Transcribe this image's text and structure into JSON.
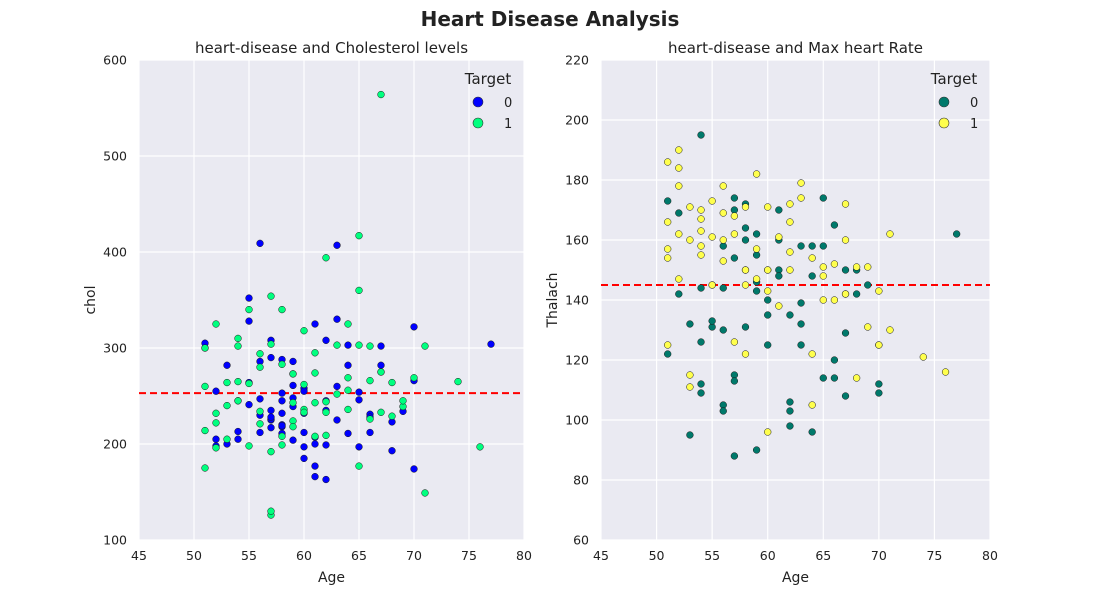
{
  "figure": {
    "title": "Heart Disease Analysis"
  },
  "chart_data": [
    {
      "type": "scatter",
      "title": "heart-disease and Cholesterol levels",
      "xlabel": "Age",
      "ylabel": "chol",
      "xlim": [
        45,
        80
      ],
      "ylim": [
        100,
        600
      ],
      "xticks": [
        "45",
        "50",
        "55",
        "60",
        "65",
        "70",
        "75",
        "80"
      ],
      "yticks": [
        "100",
        "200",
        "300",
        "400",
        "500",
        "600"
      ],
      "grid": true,
      "hline": {
        "y": 253,
        "color": "#ff0000",
        "style": "dashed"
      },
      "legend": {
        "title": "Target",
        "placement": "top-right",
        "labels": [
          "0",
          "1"
        ]
      },
      "series": [
        {
          "name": "0",
          "color": "#0000ff",
          "x": [
            51,
            51,
            52,
            52,
            52,
            53,
            53,
            54,
            54,
            55,
            55,
            55,
            56,
            56,
            56,
            57,
            57,
            57,
            57,
            58,
            58,
            58,
            58,
            58,
            59,
            59,
            59,
            59,
            60,
            60,
            60,
            60,
            61,
            61,
            61,
            62,
            62,
            62,
            62,
            63,
            63,
            63,
            64,
            64,
            65,
            65,
            65,
            66,
            66,
            67,
            67,
            67,
            68,
            68,
            69,
            70,
            70,
            70,
            77,
            55,
            56,
            57,
            58,
            59,
            60,
            61,
            62,
            57,
            58,
            59,
            60,
            61,
            63,
            64,
            66,
            56,
            58,
            54,
            57
          ],
          "y": [
            300,
            305,
            205,
            255,
            198,
            200,
            282,
            205,
            245,
            352,
            328,
            241,
            212,
            230,
            409,
            290,
            235,
            225,
            308,
            288,
            220,
            232,
            218,
            211,
            273,
            248,
            286,
            239,
            258,
            212,
            232,
            185,
            325,
            200,
            166,
            308,
            245,
            163,
            235,
            407,
            225,
            330,
            303,
            211,
            246,
            254,
            197,
            231,
            212,
            302,
            282,
            275,
            193,
            223,
            234,
            322,
            266,
            174,
            304,
            264,
            286,
            226,
            219,
            204,
            255,
            207,
            199,
            228,
            245,
            261,
            197,
            177,
            260,
            282,
            228,
            247,
            253,
            213,
            217
          ]
        },
        {
          "name": "1",
          "color": "#00ff7f",
          "x": [
            51,
            51,
            51,
            51,
            52,
            52,
            52,
            53,
            53,
            54,
            54,
            54,
            55,
            55,
            55,
            56,
            56,
            56,
            57,
            57,
            57,
            58,
            58,
            58,
            59,
            59,
            59,
            60,
            60,
            60,
            61,
            61,
            61,
            62,
            62,
            62,
            63,
            63,
            64,
            64,
            64,
            65,
            65,
            65,
            66,
            66,
            66,
            67,
            67,
            67,
            68,
            68,
            69,
            69,
            70,
            71,
            71,
            74,
            76,
            57,
            54,
            56,
            58,
            60,
            62,
            64,
            65,
            52,
            53,
            57,
            59,
            61
          ],
          "y": [
            260,
            214,
            175,
            300,
            325,
            232,
            196,
            264,
            205,
            265,
            245,
            302,
            263,
            340,
            198,
            294,
            234,
            221,
            354,
            126,
            192,
            340,
            283,
            208,
            224,
            273,
            218,
            318,
            262,
            236,
            274,
            243,
            208,
            394,
            233,
            209,
            252,
            303,
            325,
            269,
            236,
            417,
            360,
            177,
            226,
            302,
            266,
            564,
            275,
            233,
            229,
            264,
            239,
            245,
            269,
            149,
            302,
            265,
            197,
            130,
            310,
            280,
            199,
            233,
            244,
            256,
            303,
            222,
            240,
            304,
            243,
            295
          ]
        }
      ]
    },
    {
      "type": "scatter",
      "title": "heart-disease and Max heart Rate",
      "xlabel": "Age",
      "ylabel": "Thalach",
      "xlim": [
        45,
        80
      ],
      "ylim": [
        60,
        220
      ],
      "xticks": [
        "45",
        "50",
        "55",
        "60",
        "65",
        "70",
        "75",
        "80"
      ],
      "yticks": [
        "60",
        "80",
        "100",
        "120",
        "140",
        "160",
        "180",
        "200",
        "220"
      ],
      "grid": true,
      "hline": {
        "y": 145,
        "color": "#ff0000",
        "style": "dashed"
      },
      "legend": {
        "title": "Target",
        "placement": "top-right",
        "labels": [
          "0",
          "1"
        ]
      },
      "series": [
        {
          "name": "0",
          "color": "#00796b",
          "x": [
            51,
            51,
            52,
            52,
            53,
            53,
            54,
            54,
            54,
            54,
            55,
            55,
            55,
            56,
            56,
            56,
            56,
            57,
            57,
            57,
            57,
            57,
            58,
            58,
            58,
            58,
            59,
            59,
            59,
            59,
            60,
            60,
            60,
            60,
            61,
            61,
            61,
            62,
            62,
            62,
            63,
            63,
            63,
            64,
            64,
            64,
            65,
            65,
            65,
            66,
            66,
            66,
            67,
            67,
            67,
            67,
            68,
            68,
            69,
            70,
            70,
            70,
            77,
            54,
            57,
            56,
            58,
            59,
            61,
            62,
            63
          ],
          "y": [
            173,
            122,
            169,
            142,
            132,
            95,
            195,
            126,
            112,
            109,
            145,
            131,
            133,
            144,
            105,
            103,
            158,
            88,
            174,
            170,
            115,
            113,
            150,
            172,
            160,
            131,
            162,
            90,
            155,
            146,
            150,
            140,
            125,
            135,
            160,
            150,
            170,
            98,
            103,
            106,
            125,
            132,
            158,
            158,
            96,
            148,
            174,
            158,
            114,
            165,
            120,
            114,
            142,
            108,
            129,
            150,
            150,
            142,
            145,
            125,
            112,
            109,
            162,
            144,
            154,
            130,
            164,
            143,
            148,
            135,
            139
          ]
        },
        {
          "name": "1",
          "color": "#ffff4d",
          "x": [
            51,
            51,
            51,
            51,
            51,
            52,
            52,
            52,
            52,
            52,
            53,
            53,
            53,
            53,
            54,
            54,
            54,
            54,
            55,
            55,
            55,
            56,
            56,
            56,
            57,
            57,
            57,
            58,
            58,
            58,
            59,
            59,
            59,
            60,
            60,
            60,
            61,
            61,
            62,
            62,
            62,
            63,
            63,
            64,
            64,
            64,
            65,
            65,
            65,
            66,
            66,
            67,
            67,
            67,
            68,
            68,
            69,
            69,
            70,
            70,
            71,
            71,
            74,
            76,
            54,
            56,
            58,
            60,
            62
          ],
          "y": [
            186,
            166,
            157,
            154,
            125,
            184,
            190,
            178,
            162,
            147,
            171,
            160,
            115,
            111,
            163,
            155,
            167,
            170,
            173,
            161,
            145,
            169,
            178,
            153,
            168,
            162,
            126,
            145,
            122,
            171,
            182,
            157,
            147,
            171,
            96,
            143,
            161,
            138,
            172,
            166,
            156,
            179,
            174,
            154,
            122,
            105,
            148,
            151,
            140,
            140,
            152,
            172,
            160,
            142,
            114,
            151,
            131,
            151,
            143,
            125,
            162,
            130,
            121,
            116,
            158,
            160,
            150,
            150,
            150
          ]
        }
      ]
    }
  ]
}
